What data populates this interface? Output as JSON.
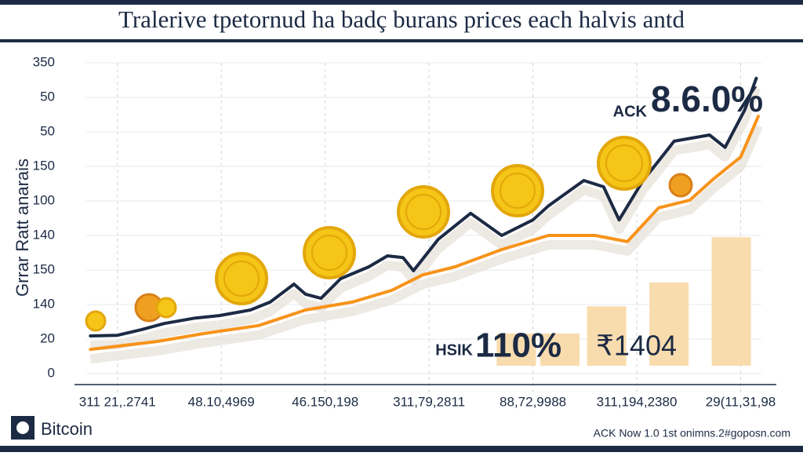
{
  "chart_data": {
    "type": "line",
    "title": "Tralerive tpetornud ha badç burans prices each halvis antd",
    "y_label": "Grrar Ratt anarais",
    "xlim": [
      -0.3,
      6.2
    ],
    "xticks": [
      {
        "value": 0,
        "label": "311 21,.2741"
      },
      {
        "value": 1,
        "label": "48.10,4969"
      },
      {
        "value": 2,
        "label": "46.150,198"
      },
      {
        "value": 3,
        "label": "311,79,2811"
      },
      {
        "value": 4,
        "label": "88,72,9988"
      },
      {
        "value": 5,
        "label": "311,194,2380"
      },
      {
        "value": 6,
        "label": "29(11,31,98"
      }
    ],
    "ylim": [
      0,
      9
    ],
    "yticks": [
      {
        "value": 0,
        "label": "0"
      },
      {
        "value": 1,
        "label": "20"
      },
      {
        "value": 2,
        "label": "140"
      },
      {
        "value": 3,
        "label": "150"
      },
      {
        "value": 4,
        "label": "140"
      },
      {
        "value": 5,
        "label": "100"
      },
      {
        "value": 6,
        "label": "150"
      },
      {
        "value": 7,
        "label": "50"
      },
      {
        "value": 8,
        "label": "50"
      },
      {
        "value": 9,
        "label": "350"
      }
    ],
    "grid": true,
    "series": [
      {
        "color": "#1c2a44",
        "x": [
          -0.26,
          0,
          0.23,
          0.45,
          0.75,
          0.98,
          1.28,
          1.47,
          1.7,
          1.81,
          1.96,
          2.15,
          2.42,
          2.6,
          2.75,
          2.85,
          3.09,
          3.4,
          3.7,
          4.0,
          4.15,
          4.49,
          4.68,
          4.83,
          5.06,
          5.21,
          5.36,
          5.7,
          5.85,
          6.04,
          6.15
        ],
        "values": [
          1.09,
          1.11,
          1.27,
          1.45,
          1.61,
          1.68,
          1.84,
          2.07,
          2.59,
          2.3,
          2.18,
          2.75,
          3.09,
          3.41,
          3.36,
          2.98,
          3.89,
          4.64,
          4.0,
          4.45,
          4.86,
          5.59,
          5.41,
          4.45,
          5.59,
          6.16,
          6.73,
          6.91,
          6.55,
          7.64,
          8.55
        ]
      },
      {
        "color": "#f7931a",
        "x": [
          -0.26,
          0.38,
          0.83,
          1.36,
          1.81,
          2.26,
          2.64,
          2.94,
          3.25,
          3.7,
          4.15,
          4.6,
          4.91,
          5.21,
          5.51,
          5.74,
          6.0,
          6.17
        ],
        "values": [
          0.7,
          0.93,
          1.16,
          1.39,
          1.84,
          2.07,
          2.41,
          2.86,
          3.09,
          3.59,
          4.0,
          4.0,
          3.82,
          4.8,
          5.02,
          5.64,
          6.27,
          7.45
        ]
      }
    ],
    "bars": {
      "color": "#f8dcae",
      "x": [
        3.84,
        4.26,
        4.71,
        5.31,
        5.91
      ],
      "values": [
        1.16,
        1.16,
        1.95,
        2.64,
        3.95
      ]
    },
    "annotations": [
      "ACK",
      "8.6.0%",
      "HSIK",
      "110%",
      "₹1404"
    ],
    "brand": "Bitcoin",
    "footer": "ACK Now 1.0  1st onimns.2#goposn.com"
  }
}
